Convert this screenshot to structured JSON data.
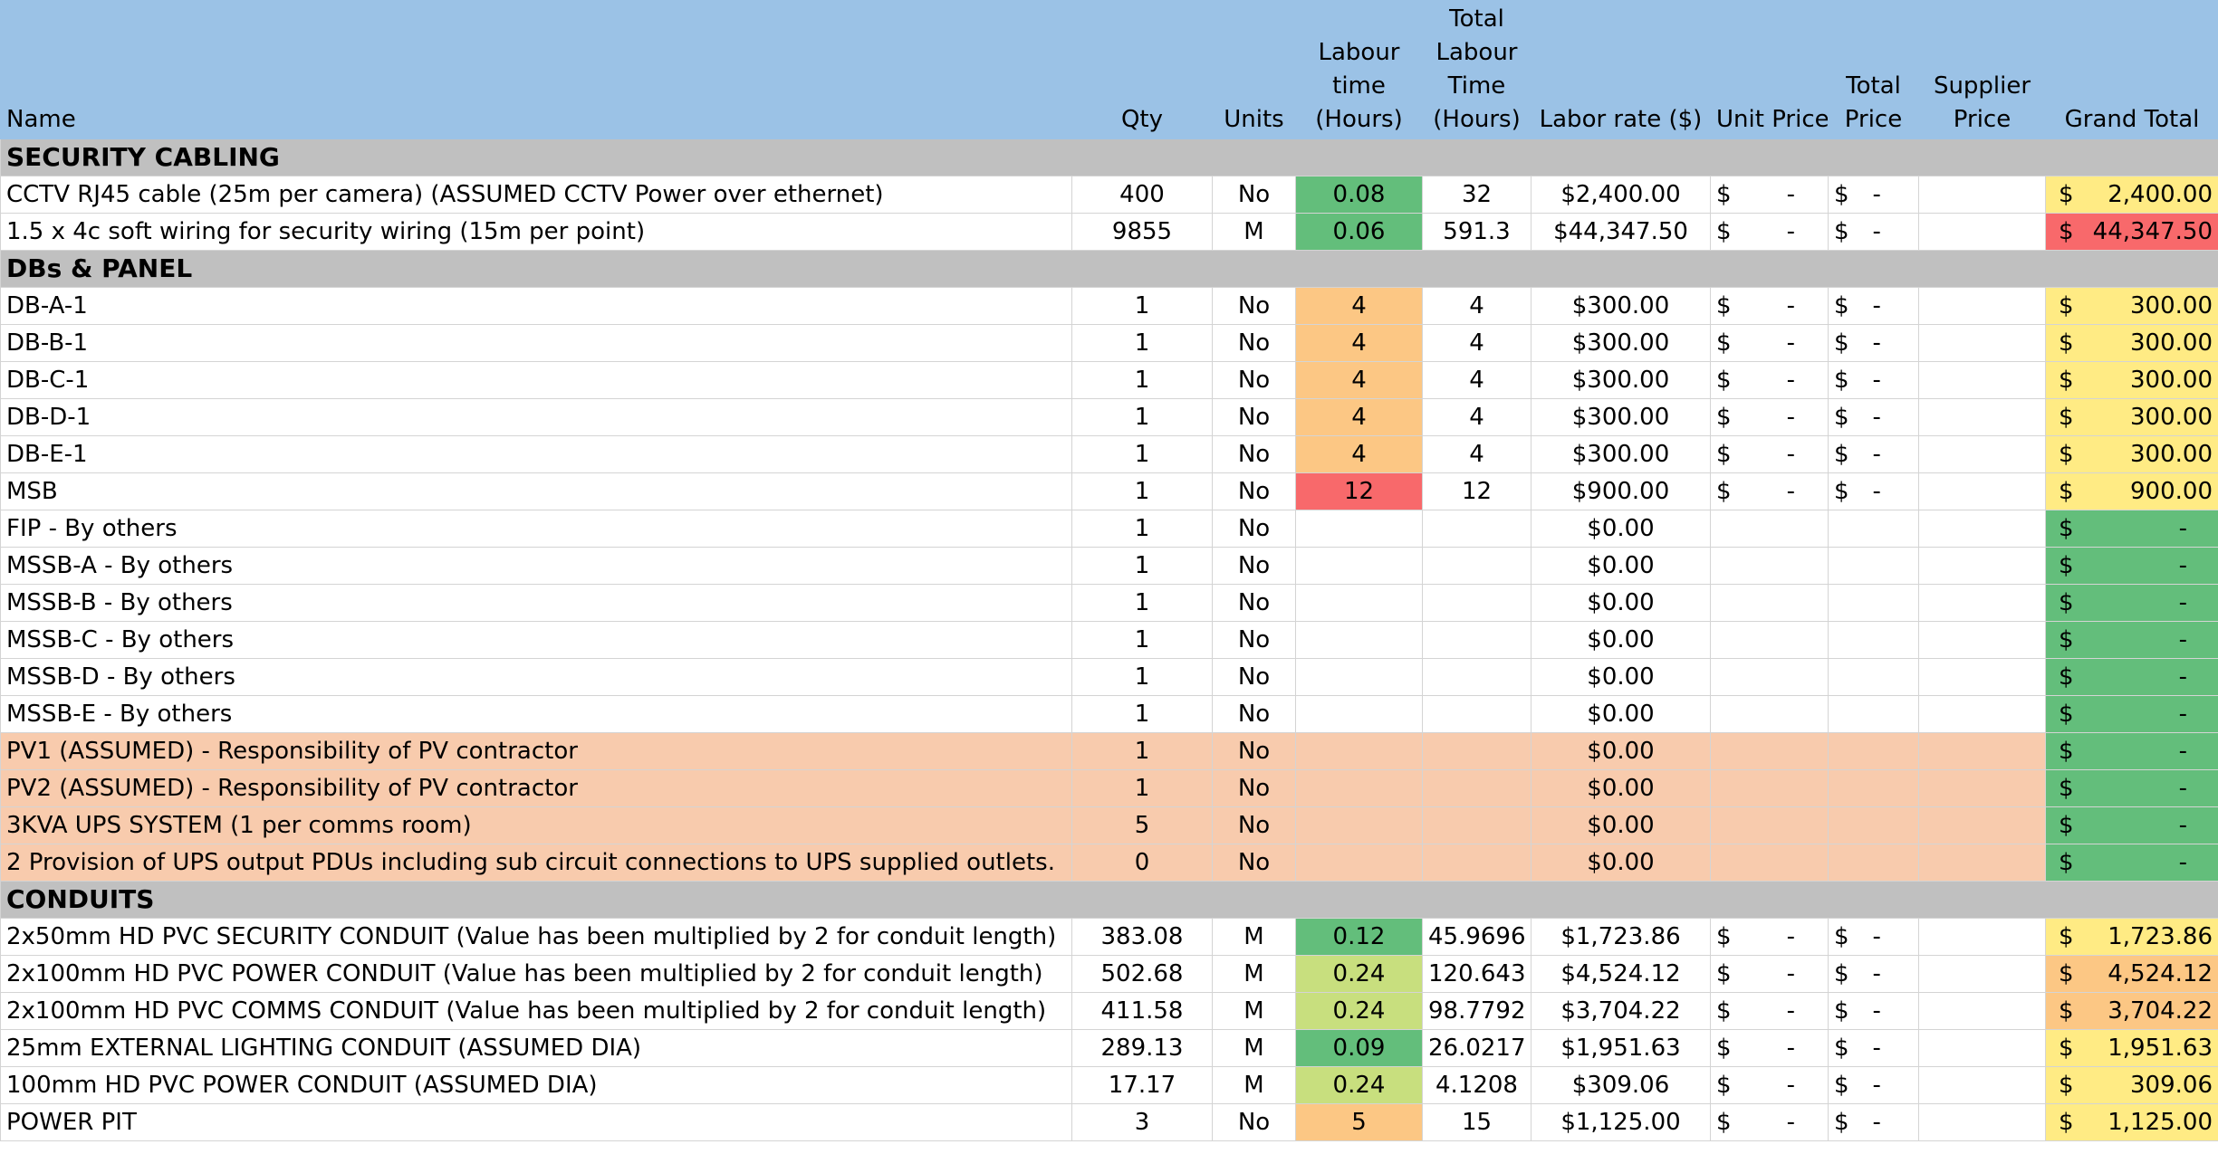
{
  "headers": {
    "name": "Name",
    "qty": "Qty",
    "units": "Units",
    "labour_time": "Labour time (Hours)",
    "total_labour_time": "Total Labour Time (Hours)",
    "labor_rate": "Labor rate ($)",
    "unit_price": "Unit Price",
    "total_price": "Total Price",
    "supplier_price": "Supplier Price",
    "grand_total": "Grand Total"
  },
  "colors": {
    "header_bg": "#9bc2e6",
    "section_bg": "#c0c0c0",
    "highlight_row": "#f8cbad",
    "green": "#63be7b",
    "light_green": "#c8df7e",
    "orange": "#fcc784",
    "red": "#f8696b",
    "yellow": "#ffeb84"
  },
  "rows": [
    {
      "type": "section",
      "name": "SECURITY CABLING"
    },
    {
      "type": "item",
      "name": "CCTV RJ45 cable (25m per camera) (ASSUMED CCTV Power over ethernet)",
      "qty": "400",
      "units": "No",
      "labour": "0.08",
      "labour_color": "green",
      "total_labour": "32",
      "rate": "$2,400.00",
      "unit_price": "$",
      "unit_price_val": "-",
      "total_price": "$",
      "total_price_val": "-",
      "supplier": "",
      "gt_sym": "$",
      "gt_val": "2,400.00",
      "gt_color": "yellow",
      "highlight": false
    },
    {
      "type": "item",
      "name": "1.5 x 4c soft wiring for security wiring (15m per point)",
      "qty": "9855",
      "units": "M",
      "labour": "0.06",
      "labour_color": "green",
      "total_labour": "591.3",
      "rate": "$44,347.50",
      "unit_price": "$",
      "unit_price_val": "-",
      "total_price": "$",
      "total_price_val": "-",
      "supplier": "",
      "gt_sym": "$",
      "gt_val": "44,347.50",
      "gt_color": "red",
      "highlight": false
    },
    {
      "type": "section",
      "name": "DBs & PANEL"
    },
    {
      "type": "item",
      "name": "DB-A-1",
      "qty": "1",
      "units": "No",
      "labour": "4",
      "labour_color": "orange",
      "total_labour": "4",
      "rate": "$300.00",
      "unit_price": "$",
      "unit_price_val": "-",
      "total_price": "$",
      "total_price_val": "-",
      "supplier": "",
      "gt_sym": "$",
      "gt_val": "300.00",
      "gt_color": "yellow",
      "highlight": false
    },
    {
      "type": "item",
      "name": "DB-B-1",
      "qty": "1",
      "units": "No",
      "labour": "4",
      "labour_color": "orange",
      "total_labour": "4",
      "rate": "$300.00",
      "unit_price": "$",
      "unit_price_val": "-",
      "total_price": "$",
      "total_price_val": "-",
      "supplier": "",
      "gt_sym": "$",
      "gt_val": "300.00",
      "gt_color": "yellow",
      "highlight": false
    },
    {
      "type": "item",
      "name": "DB-C-1",
      "qty": "1",
      "units": "No",
      "labour": "4",
      "labour_color": "orange",
      "total_labour": "4",
      "rate": "$300.00",
      "unit_price": "$",
      "unit_price_val": "-",
      "total_price": "$",
      "total_price_val": "-",
      "supplier": "",
      "gt_sym": "$",
      "gt_val": "300.00",
      "gt_color": "yellow",
      "highlight": false
    },
    {
      "type": "item",
      "name": "DB-D-1",
      "qty": "1",
      "units": "No",
      "labour": "4",
      "labour_color": "orange",
      "total_labour": "4",
      "rate": "$300.00",
      "unit_price": "$",
      "unit_price_val": "-",
      "total_price": "$",
      "total_price_val": "-",
      "supplier": "",
      "gt_sym": "$",
      "gt_val": "300.00",
      "gt_color": "yellow",
      "highlight": false
    },
    {
      "type": "item",
      "name": "DB-E-1",
      "qty": "1",
      "units": "No",
      "labour": "4",
      "labour_color": "orange",
      "total_labour": "4",
      "rate": "$300.00",
      "unit_price": "$",
      "unit_price_val": "-",
      "total_price": "$",
      "total_price_val": "-",
      "supplier": "",
      "gt_sym": "$",
      "gt_val": "300.00",
      "gt_color": "yellow",
      "highlight": false
    },
    {
      "type": "item",
      "name": "MSB",
      "qty": "1",
      "units": "No",
      "labour": "12",
      "labour_color": "red",
      "total_labour": "12",
      "rate": "$900.00",
      "unit_price": "$",
      "unit_price_val": "-",
      "total_price": "$",
      "total_price_val": "-",
      "supplier": "",
      "gt_sym": "$",
      "gt_val": "900.00",
      "gt_color": "yellow",
      "highlight": false
    },
    {
      "type": "item",
      "name": "FIP - By others",
      "qty": "1",
      "units": "No",
      "labour": "",
      "labour_color": "",
      "total_labour": "",
      "rate": "$0.00",
      "unit_price": "",
      "unit_price_val": "",
      "total_price": "",
      "total_price_val": "",
      "supplier": "",
      "gt_sym": "$",
      "gt_val": "-",
      "gt_color": "green",
      "highlight": false
    },
    {
      "type": "item",
      "name": "MSSB-A - By others",
      "qty": "1",
      "units": "No",
      "labour": "",
      "labour_color": "",
      "total_labour": "",
      "rate": "$0.00",
      "unit_price": "",
      "unit_price_val": "",
      "total_price": "",
      "total_price_val": "",
      "supplier": "",
      "gt_sym": "$",
      "gt_val": "-",
      "gt_color": "green",
      "highlight": false
    },
    {
      "type": "item",
      "name": "MSSB-B - By others",
      "qty": "1",
      "units": "No",
      "labour": "",
      "labour_color": "",
      "total_labour": "",
      "rate": "$0.00",
      "unit_price": "",
      "unit_price_val": "",
      "total_price": "",
      "total_price_val": "",
      "supplier": "",
      "gt_sym": "$",
      "gt_val": "-",
      "gt_color": "green",
      "highlight": false
    },
    {
      "type": "item",
      "name": "MSSB-C - By others",
      "qty": "1",
      "units": "No",
      "labour": "",
      "labour_color": "",
      "total_labour": "",
      "rate": "$0.00",
      "unit_price": "",
      "unit_price_val": "",
      "total_price": "",
      "total_price_val": "",
      "supplier": "",
      "gt_sym": "$",
      "gt_val": "-",
      "gt_color": "green",
      "highlight": false
    },
    {
      "type": "item",
      "name": "MSSB-D - By others",
      "qty": "1",
      "units": "No",
      "labour": "",
      "labour_color": "",
      "total_labour": "",
      "rate": "$0.00",
      "unit_price": "",
      "unit_price_val": "",
      "total_price": "",
      "total_price_val": "",
      "supplier": "",
      "gt_sym": "$",
      "gt_val": "-",
      "gt_color": "green",
      "highlight": false
    },
    {
      "type": "item",
      "name": "MSSB-E - By others",
      "qty": "1",
      "units": "No",
      "labour": "",
      "labour_color": "",
      "total_labour": "",
      "rate": "$0.00",
      "unit_price": "",
      "unit_price_val": "",
      "total_price": "",
      "total_price_val": "",
      "supplier": "",
      "gt_sym": "$",
      "gt_val": "-",
      "gt_color": "green",
      "highlight": false
    },
    {
      "type": "item",
      "name": "PV1 (ASSUMED) - Responsibility of PV contractor",
      "qty": "1",
      "units": "No",
      "labour": "",
      "labour_color": "",
      "total_labour": "",
      "rate": "$0.00",
      "unit_price": "",
      "unit_price_val": "",
      "total_price": "",
      "total_price_val": "",
      "supplier": "",
      "gt_sym": "$",
      "gt_val": "-",
      "gt_color": "green",
      "highlight": true
    },
    {
      "type": "item",
      "name": "PV2 (ASSUMED) - Responsibility of PV contractor",
      "qty": "1",
      "units": "No",
      "labour": "",
      "labour_color": "",
      "total_labour": "",
      "rate": "$0.00",
      "unit_price": "",
      "unit_price_val": "",
      "total_price": "",
      "total_price_val": "",
      "supplier": "",
      "gt_sym": "$",
      "gt_val": "-",
      "gt_color": "green",
      "highlight": true
    },
    {
      "type": "item",
      "name": "3KVA UPS SYSTEM (1 per comms room)",
      "qty": "5",
      "units": "No",
      "labour": "",
      "labour_color": "",
      "total_labour": "",
      "rate": "$0.00",
      "unit_price": "",
      "unit_price_val": "",
      "total_price": "",
      "total_price_val": "",
      "supplier": "",
      "gt_sym": "$",
      "gt_val": "-",
      "gt_color": "green",
      "highlight": true
    },
    {
      "type": "item",
      "name": "2 Provision of UPS output PDUs including sub circuit connections to UPS supplied outlets.",
      "qty": "0",
      "units": "No",
      "labour": "",
      "labour_color": "",
      "total_labour": "",
      "rate": "$0.00",
      "unit_price": "",
      "unit_price_val": "",
      "total_price": "",
      "total_price_val": "",
      "supplier": "",
      "gt_sym": "$",
      "gt_val": "-",
      "gt_color": "green",
      "highlight": true
    },
    {
      "type": "section",
      "name": "CONDUITS"
    },
    {
      "type": "item",
      "name": "2x50mm HD PVC SECURITY CONDUIT (Value has been multiplied by 2 for conduit length)",
      "qty": "383.08",
      "units": "M",
      "labour": "0.12",
      "labour_color": "green",
      "total_labour": "45.9696",
      "rate": "$1,723.86",
      "unit_price": "$",
      "unit_price_val": "-",
      "total_price": "$",
      "total_price_val": "-",
      "supplier": "",
      "gt_sym": "$",
      "gt_val": "1,723.86",
      "gt_color": "yellow",
      "highlight": false
    },
    {
      "type": "item",
      "name": "2x100mm HD PVC  POWER CONDUIT (Value has been multiplied by 2 for conduit length)",
      "qty": "502.68",
      "units": "M",
      "labour": "0.24",
      "labour_color": "lgreen",
      "total_labour": "120.643",
      "rate": "$4,524.12",
      "unit_price": "$",
      "unit_price_val": "-",
      "total_price": "$",
      "total_price_val": "-",
      "supplier": "",
      "gt_sym": "$",
      "gt_val": "4,524.12",
      "gt_color": "orange",
      "highlight": false
    },
    {
      "type": "item",
      "name": "2x100mm HD PVC COMMS CONDUIT (Value has been multiplied by 2 for conduit length)",
      "qty": "411.58",
      "units": "M",
      "labour": "0.24",
      "labour_color": "lgreen",
      "total_labour": "98.7792",
      "rate": "$3,704.22",
      "unit_price": "$",
      "unit_price_val": "-",
      "total_price": "$",
      "total_price_val": "-",
      "supplier": "",
      "gt_sym": "$",
      "gt_val": "3,704.22",
      "gt_color": "orange",
      "highlight": false
    },
    {
      "type": "item",
      "name": "25mm EXTERNAL LIGHTING CONDUIT (ASSUMED DIA)",
      "qty": "289.13",
      "units": "M",
      "labour": "0.09",
      "labour_color": "green",
      "total_labour": "26.0217",
      "rate": "$1,951.63",
      "unit_price": "$",
      "unit_price_val": "-",
      "total_price": "$",
      "total_price_val": "-",
      "supplier": "",
      "gt_sym": "$",
      "gt_val": "1,951.63",
      "gt_color": "yellow",
      "highlight": false
    },
    {
      "type": "item",
      "name": "100mm HD PVC POWER CONDUIT (ASSUMED DIA)",
      "qty": "17.17",
      "units": "M",
      "labour": "0.24",
      "labour_color": "lgreen",
      "total_labour": "4.1208",
      "rate": "$309.06",
      "unit_price": "$",
      "unit_price_val": "-",
      "total_price": "$",
      "total_price_val": "-",
      "supplier": "",
      "gt_sym": "$",
      "gt_val": "309.06",
      "gt_color": "yellow",
      "highlight": false
    },
    {
      "type": "item",
      "name": "POWER PIT",
      "qty": "3",
      "units": "No",
      "labour": "5",
      "labour_color": "orange",
      "total_labour": "15",
      "rate": "$1,125.00",
      "unit_price": "$",
      "unit_price_val": "-",
      "total_price": "$",
      "total_price_val": "-",
      "supplier": "",
      "gt_sym": "$",
      "gt_val": "1,125.00",
      "gt_color": "yellow",
      "highlight": false
    }
  ]
}
